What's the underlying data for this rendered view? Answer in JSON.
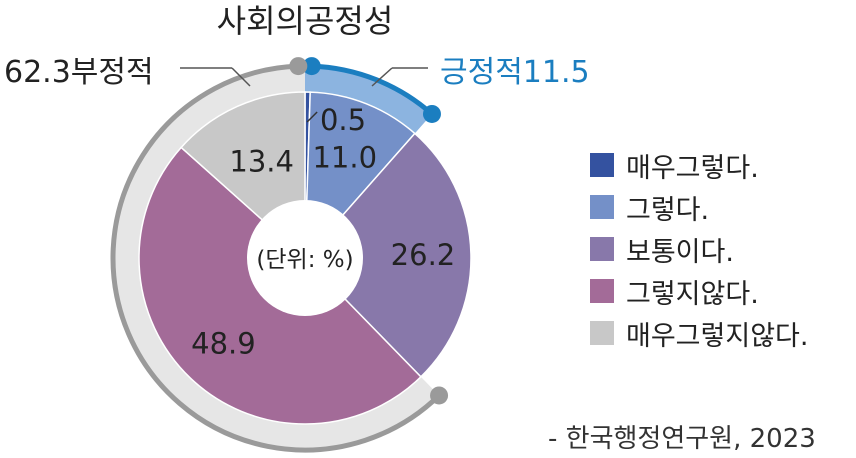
{
  "chart_data": {
    "type": "pie",
    "title": "사회의공정성",
    "unit_label": "(단위: %)",
    "categories": [
      "매우그렇다.",
      "그렇다.",
      "보통이다.",
      "그렇지않다.",
      "매우그렇지않다."
    ],
    "values": [
      0.5,
      11.0,
      26.2,
      48.9,
      13.4
    ],
    "value_labels": [
      "0.5",
      "11.0",
      "26.2",
      "48.9",
      "13.4"
    ],
    "colors": [
      "#3452a0",
      "#7490c8",
      "#8878aa",
      "#a36b98",
      "#c8c8c8"
    ],
    "groups": [
      {
        "label": "긍정적11.5",
        "value": 11.5,
        "color": "#1b7ec0"
      },
      {
        "label": "62.3부정적",
        "value": 62.3,
        "color": "#9a9a9a"
      }
    ]
  },
  "legend": {
    "items": [
      {
        "label": "매우그렇다.",
        "color": "#3452a0"
      },
      {
        "label": "그렇다.",
        "color": "#7490c8"
      },
      {
        "label": "보통이다.",
        "color": "#8878aa"
      },
      {
        "label": "그렇지않다.",
        "color": "#a36b98"
      },
      {
        "label": "매우그렇지않다.",
        "color": "#c8c8c8"
      }
    ]
  },
  "source": "- 한국행정연구원, 2023"
}
